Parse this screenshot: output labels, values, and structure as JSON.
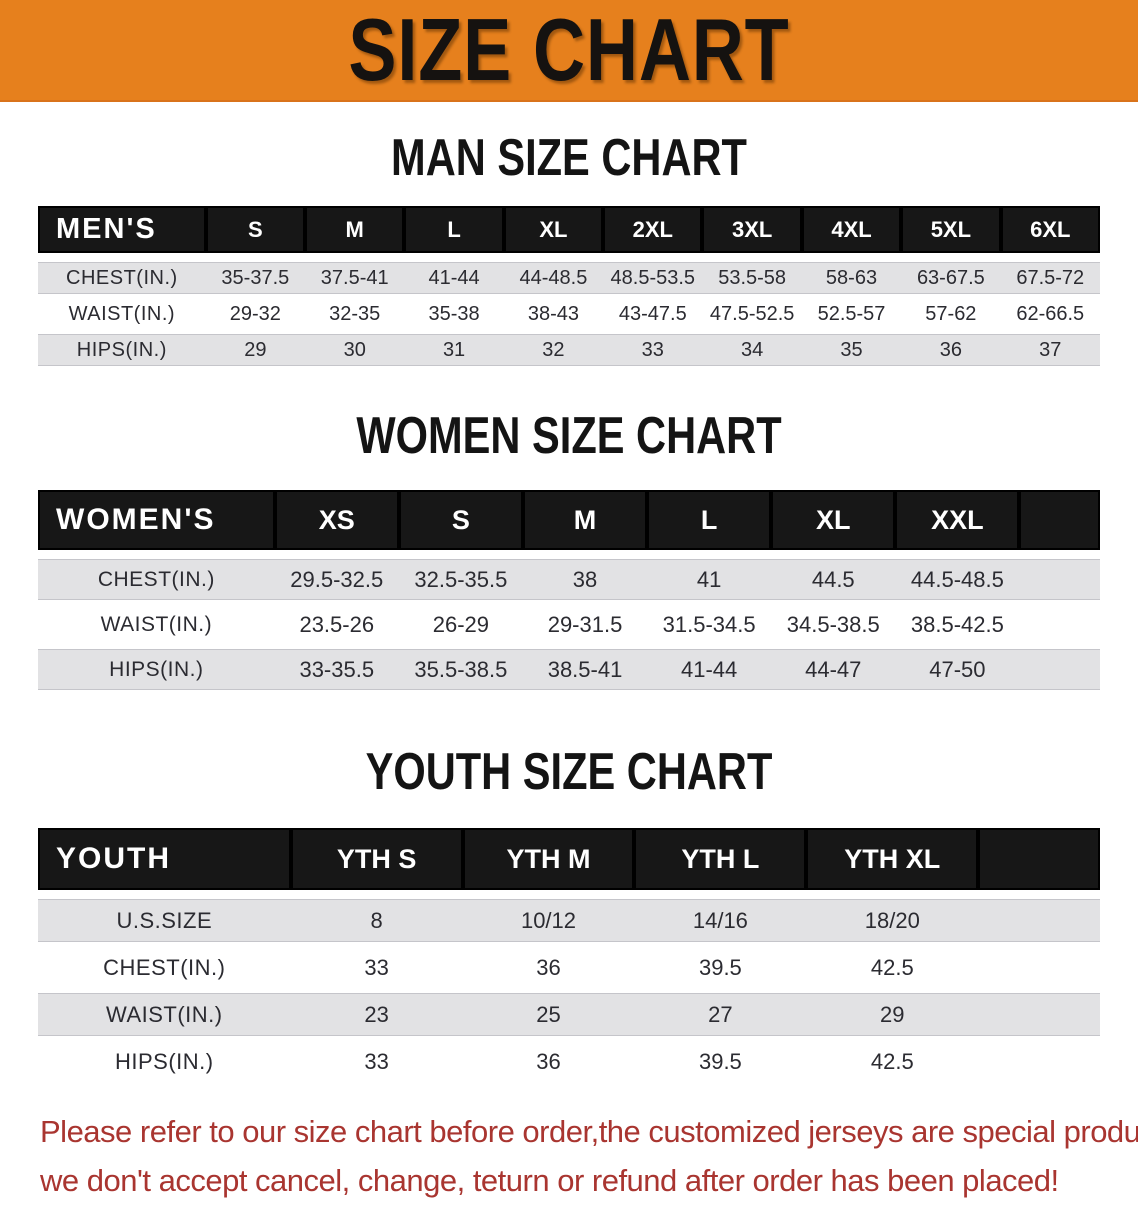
{
  "banner": {
    "title": "SIZE CHART",
    "bg_color": "#e6801d"
  },
  "colors": {
    "table_header_bg": "#171717",
    "row_stripe": "#e2e2e4",
    "notice_text": "#a93530"
  },
  "sections": [
    {
      "heading": "MAN SIZE CHART",
      "table": {
        "header_label": "MEN'S",
        "columns": [
          "S",
          "M",
          "L",
          "XL",
          "2XL",
          "3XL",
          "4XL",
          "5XL",
          "6XL"
        ],
        "rows": [
          {
            "label": "CHEST(IN.)",
            "values": [
              "35-37.5",
              "37.5-41",
              "41-44",
              "44-48.5",
              "48.5-53.5",
              "53.5-58",
              "58-63",
              "63-67.5",
              "67.5-72"
            ]
          },
          {
            "label": "WAIST(IN.)",
            "values": [
              "29-32",
              "32-35",
              "35-38",
              "38-43",
              "43-47.5",
              "47.5-52.5",
              "52.5-57",
              "57-62",
              "62-66.5"
            ]
          },
          {
            "label": "HIPS(IN.)",
            "values": [
              "29",
              "30",
              "31",
              "32",
              "33",
              "34",
              "35",
              "36",
              "37"
            ]
          }
        ]
      }
    },
    {
      "heading": "WOMEN SIZE CHART",
      "table": {
        "header_label": "WOMEN'S",
        "columns": [
          "XS",
          "S",
          "M",
          "L",
          "XL",
          "XXL"
        ],
        "rows": [
          {
            "label": "CHEST(IN.)",
            "values": [
              "29.5-32.5",
              "32.5-35.5",
              "38",
              "41",
              "44.5",
              "44.5-48.5"
            ]
          },
          {
            "label": "WAIST(IN.)",
            "values": [
              "23.5-26",
              "26-29",
              "29-31.5",
              "31.5-34.5",
              "34.5-38.5",
              "38.5-42.5"
            ]
          },
          {
            "label": "HIPS(IN.)",
            "values": [
              "33-35.5",
              "35.5-38.5",
              "38.5-41",
              "41-44",
              "44-47",
              "47-50"
            ]
          }
        ]
      }
    },
    {
      "heading": "YOUTH SIZE CHART",
      "table": {
        "header_label": "YOUTH",
        "columns": [
          "YTH S",
          "YTH M",
          "YTH L",
          "YTH XL"
        ],
        "rows": [
          {
            "label": "U.S.SIZE",
            "values": [
              "8",
              "10/12",
              "14/16",
              "18/20"
            ]
          },
          {
            "label": "CHEST(IN.)",
            "values": [
              "33",
              "36",
              "39.5",
              "42.5"
            ]
          },
          {
            "label": "WAIST(IN.)",
            "values": [
              "23",
              "25",
              "27",
              "29"
            ]
          },
          {
            "label": "HIPS(IN.)",
            "values": [
              "33",
              "36",
              "39.5",
              "42.5"
            ]
          }
        ]
      }
    }
  ],
  "footer": {
    "line1": "Please refer to our size chart before order,the customized jerseys are special products,",
    "line2": "we don't accept cancel, change, teturn or refund after order has been placed!"
  }
}
